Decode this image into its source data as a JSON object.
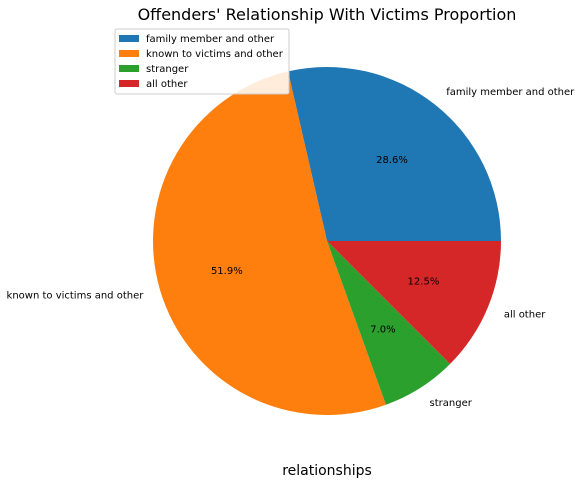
{
  "chart_data": {
    "type": "pie",
    "title": "Offenders' Relationship With Victims Proportion",
    "xlabel": "relationships",
    "ylabel": "",
    "categories": [
      "family member and other",
      "known to victims and other",
      "stranger",
      "all other"
    ],
    "values": [
      28.6,
      51.9,
      7.0,
      12.5
    ],
    "percent_labels": [
      "28.6%",
      "51.9%",
      "7.0%",
      "12.5%"
    ],
    "colors": [
      "#1f77b4",
      "#ff7f0e",
      "#2ca02c",
      "#d62728"
    ],
    "start_angle_deg": 0,
    "direction": "counterclockwise",
    "legend": {
      "position": "top-left",
      "entries": [
        "family member and other",
        "known to victims and other",
        "stranger",
        "all other"
      ]
    }
  }
}
